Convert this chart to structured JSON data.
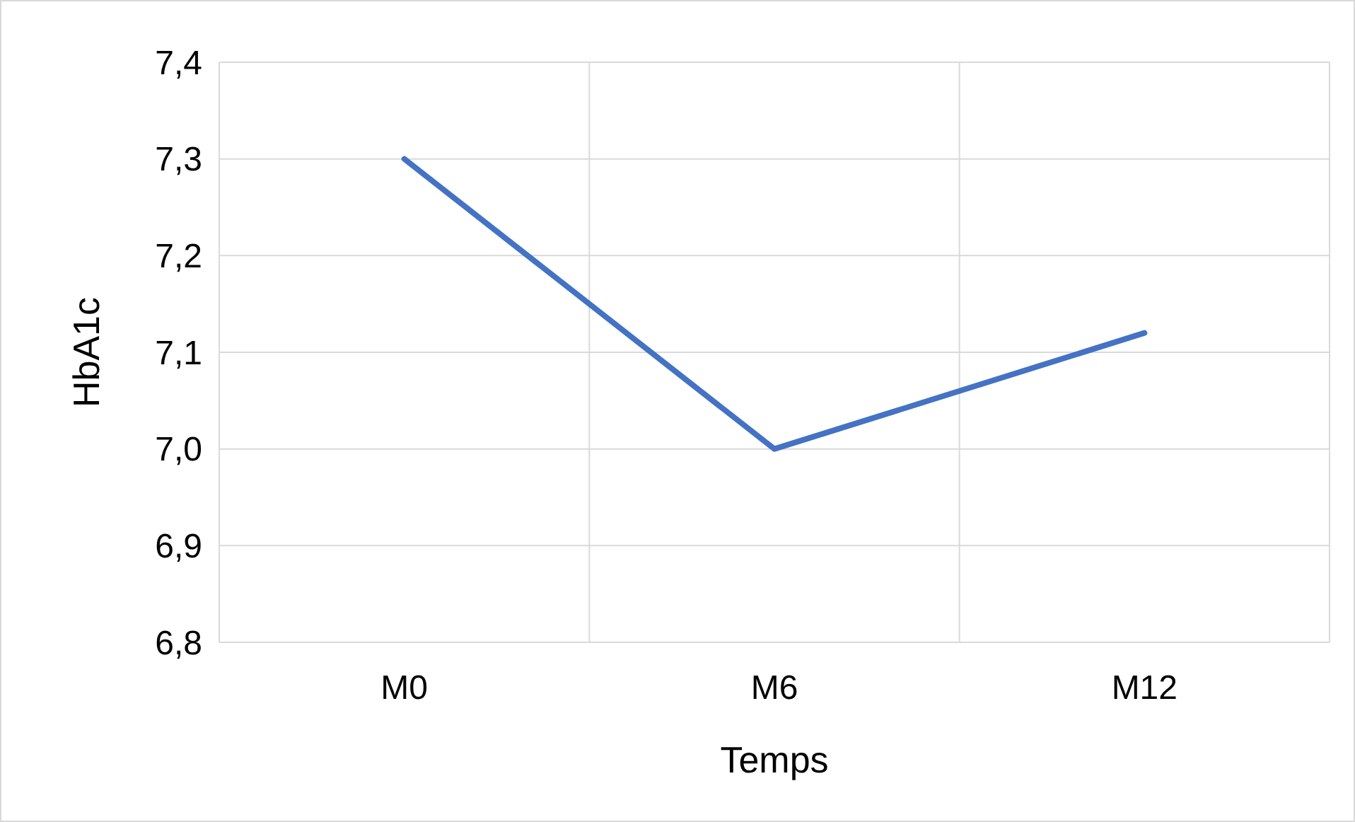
{
  "chart_data": {
    "type": "line",
    "xlabel": "Temps",
    "ylabel": "HbA1c",
    "categories": [
      "M0",
      "M6",
      "M12"
    ],
    "series": [
      {
        "color": "#4472c4",
        "values": [
          7.3,
          7.0,
          7.12
        ]
      }
    ],
    "ylim": [
      6.8,
      7.4
    ],
    "yticks": [
      {
        "value": 6.8,
        "label": "6,8"
      },
      {
        "value": 6.9,
        "label": "6,9"
      },
      {
        "value": 7.0,
        "label": "7,0"
      },
      {
        "value": 7.1,
        "label": "7,1"
      },
      {
        "value": 7.2,
        "label": "7,2"
      },
      {
        "value": 7.3,
        "label": "7,3"
      },
      {
        "value": 7.4,
        "label": "7,4"
      }
    ],
    "grid": true,
    "marker": "none",
    "line_style": "solid"
  }
}
